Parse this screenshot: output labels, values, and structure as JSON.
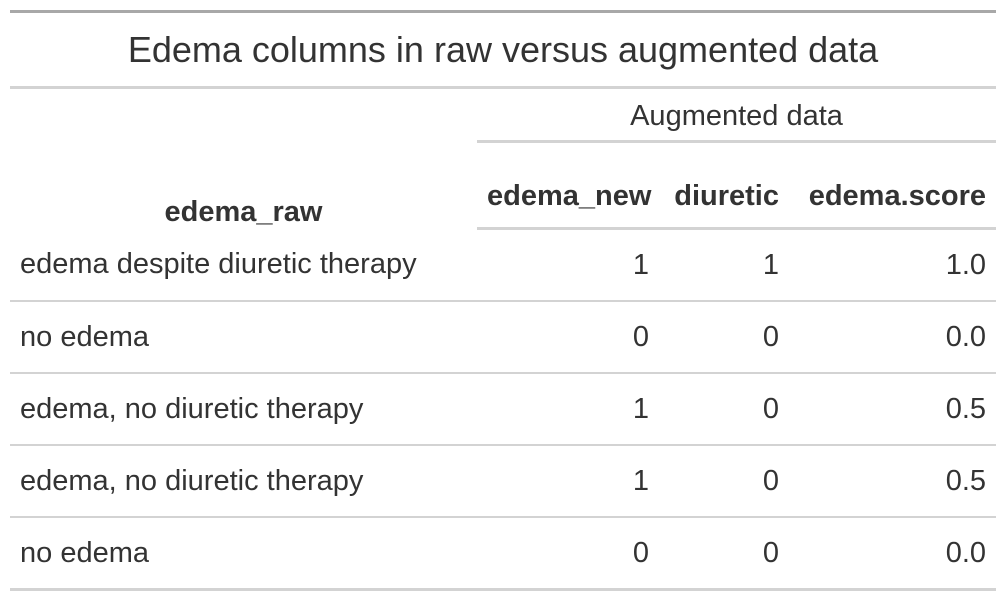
{
  "table": {
    "title": "Edema columns in raw versus augmented data",
    "spanner": "Augmented data",
    "columns": [
      "edema_raw",
      "edema_new",
      "diuretic",
      "edema.score"
    ],
    "rows": [
      [
        "edema despite diuretic therapy",
        "1",
        "1",
        "1.0"
      ],
      [
        "no edema",
        "0",
        "0",
        "0.0"
      ],
      [
        "edema, no diuretic therapy",
        "1",
        "0",
        "0.5"
      ],
      [
        "edema, no diuretic therapy",
        "1",
        "0",
        "0.5"
      ],
      [
        "no edema",
        "0",
        "0",
        "0.0"
      ]
    ]
  }
}
